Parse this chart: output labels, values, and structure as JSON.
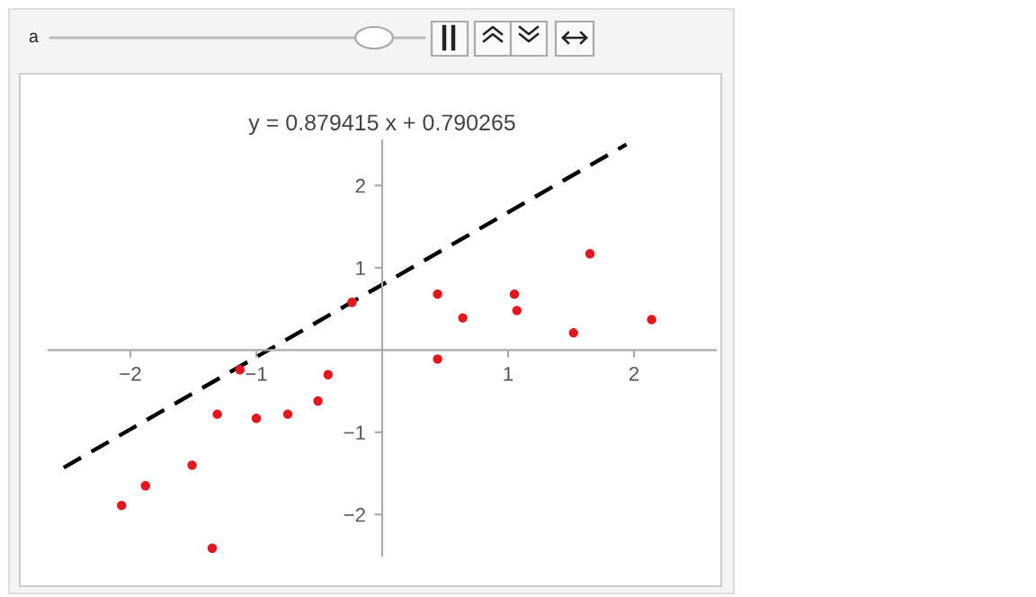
{
  "chart_data": {
    "type": "scatter",
    "title": "y = 0.879415 x + 0.790265",
    "annotations": [
      "a"
    ],
    "xlim": [
      -2.65,
      2.65
    ],
    "ylim": [
      -2.5,
      2.55
    ],
    "xticks": [
      {
        "value": -2,
        "label": "−2"
      },
      {
        "value": -1,
        "label": "−1"
      },
      1,
      2
    ],
    "yticks": [
      {
        "value": -2,
        "label": "−2"
      },
      {
        "value": -1,
        "label": "−1"
      },
      1,
      2
    ],
    "grid": false,
    "legend": false,
    "series": [
      {
        "marker": "circle",
        "color": "#e3171d",
        "x": [
          -2.07,
          -1.88,
          -1.51,
          -1.35,
          -1.31,
          -1.13,
          -1.0,
          -0.75,
          -0.51,
          -0.43,
          -0.24,
          0.44,
          0.44,
          0.64,
          1.05,
          1.07,
          1.52,
          1.65,
          2.14
        ],
        "values": [
          -1.89,
          -1.65,
          -1.4,
          -2.41,
          -0.78,
          -0.24,
          -0.83,
          -0.78,
          -0.62,
          -0.3,
          0.58,
          0.68,
          -0.11,
          0.39,
          0.68,
          0.48,
          0.21,
          1.17,
          0.37
        ]
      },
      {
        "type": "line",
        "color": "#000000",
        "line_style": "dashed",
        "x": [
          -2.53,
          1.94
        ],
        "values": [
          -1.43,
          2.5
        ]
      }
    ]
  }
}
